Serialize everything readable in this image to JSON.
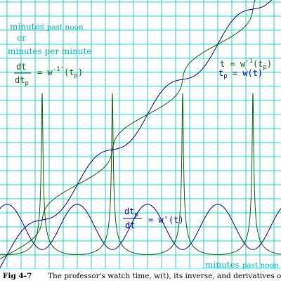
{
  "figure": {
    "label": "Fig 4-7",
    "caption": "The professor's watch time, w(t), its inverse, and derivatives of both"
  },
  "chart_data": {
    "type": "line",
    "grid": true,
    "colors": {
      "grid": "#33cccc",
      "green": "#0a5c0a",
      "navy": "#000080",
      "axis_text": "#00b3b3"
    },
    "ylabel": {
      "line1": "minutes",
      "line1b": "past noon",
      "line2": "or",
      "line3": "minutes per minute"
    },
    "xlabel": {
      "part1": "minutes",
      "part2": "past noon"
    },
    "curve_labels": {
      "inverse_derivative": {
        "lhs_num": "dt",
        "lhs_den": "dt",
        "lhs_den_sub": "p",
        "rhs": "= w",
        "rhs_sup": "-1'",
        "rhs_tail": "(t",
        "rhs_tail_sub": "p",
        "rhs_close": ")"
      },
      "inverse": {
        "lhs": "t = w",
        "lhs_sup": "-1",
        "lhs_tail": "(t",
        "lhs_tail_sub": "p",
        "lhs_close": ")"
      },
      "watch": {
        "lhs": "t",
        "lhs_sub": "p",
        "rhs": " = w(t)"
      },
      "watch_derivative": {
        "lhs_num": "dt",
        "lhs_num_sub": "p",
        "lhs_den": "dt",
        "rhs": "= w'(t)"
      }
    },
    "series": [
      {
        "key": "w",
        "color": "navy"
      },
      {
        "key": "w_inverse",
        "color": "green"
      },
      {
        "key": "w_prime",
        "color": "navy"
      },
      {
        "key": "w_inverse_prime",
        "color": "green"
      }
    ]
  }
}
